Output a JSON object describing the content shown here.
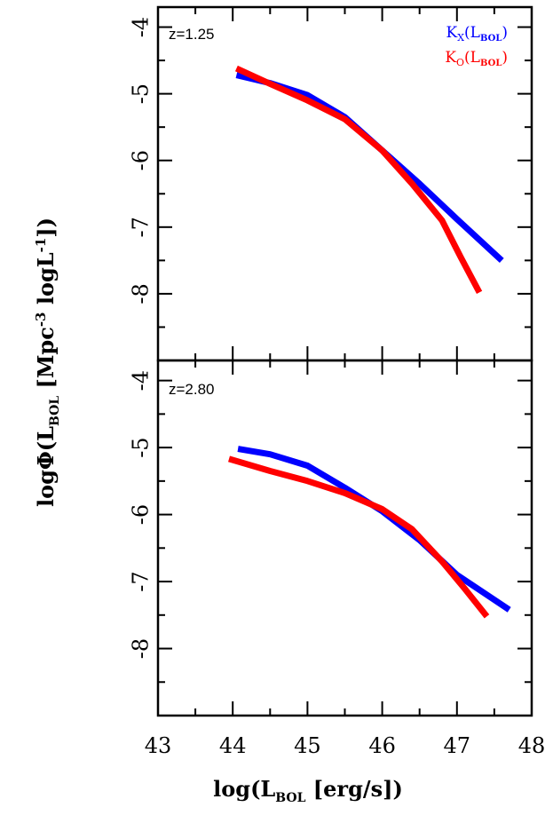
{
  "chart_data": [
    {
      "type": "line",
      "annotation": "z=1.25",
      "xlabel_main": "log(L",
      "xlabel_sub": "BOL",
      "xlabel_tail": " [erg/s])",
      "ylabel_main": "logΦ(L",
      "ylabel_sub": "BOL",
      "ylabel_tail": " [Mpc",
      "ylabel_sup1": "-3",
      "ylabel_mid": " logL",
      "ylabel_sup2": "-1",
      "ylabel_end": "])",
      "xlim": [
        43,
        48
      ],
      "ylim": [
        -9,
        -3.7
      ],
      "xticks": [
        "43",
        "44",
        "45",
        "46",
        "47",
        "48"
      ],
      "yticks": [
        "-4",
        "-5",
        "-6",
        "-7",
        "-8"
      ],
      "legend_position": "top-right",
      "legend": [
        {
          "main": "K",
          "sub": "X",
          "paren": "(L",
          "psub": "BOL",
          "close": ")",
          "color": "#0000ff"
        },
        {
          "main": "K",
          "sub": "O",
          "paren": "(L",
          "psub": "BOL",
          "close": ")",
          "color": "#ff0000"
        }
      ],
      "series": [
        {
          "color": "#0000ff",
          "x": [
            44.05,
            44.5,
            45.0,
            45.5,
            46.0,
            46.5,
            47.0,
            47.6
          ],
          "y": [
            -4.72,
            -4.84,
            -5.02,
            -5.35,
            -5.85,
            -6.35,
            -6.88,
            -7.5
          ]
        },
        {
          "color": "#ff0000",
          "x": [
            44.05,
            44.5,
            45.0,
            45.5,
            46.0,
            46.4,
            46.8,
            47.05,
            47.3
          ],
          "y": [
            -4.62,
            -4.85,
            -5.1,
            -5.38,
            -5.85,
            -6.35,
            -6.9,
            -7.45,
            -7.98
          ]
        }
      ]
    },
    {
      "type": "line",
      "annotation": "z=2.80",
      "xlim": [
        43,
        48
      ],
      "ylim": [
        -9,
        -3.7
      ],
      "xticks": [
        "43",
        "44",
        "45",
        "46",
        "47",
        "48"
      ],
      "yticks": [
        "-4",
        "-5",
        "-6",
        "-7",
        "-8"
      ],
      "series": [
        {
          "color": "#0000ff",
          "x": [
            44.07,
            44.5,
            45.0,
            45.5,
            46.0,
            46.5,
            47.0,
            47.7
          ],
          "y": [
            -5.02,
            -5.1,
            -5.27,
            -5.6,
            -5.95,
            -6.38,
            -6.9,
            -7.42
          ]
        },
        {
          "color": "#ff0000",
          "x": [
            43.95,
            44.5,
            45.0,
            45.5,
            46.0,
            46.4,
            46.8,
            47.1,
            47.4
          ],
          "y": [
            -5.17,
            -5.35,
            -5.5,
            -5.68,
            -5.92,
            -6.22,
            -6.7,
            -7.1,
            -7.52
          ]
        }
      ]
    }
  ]
}
